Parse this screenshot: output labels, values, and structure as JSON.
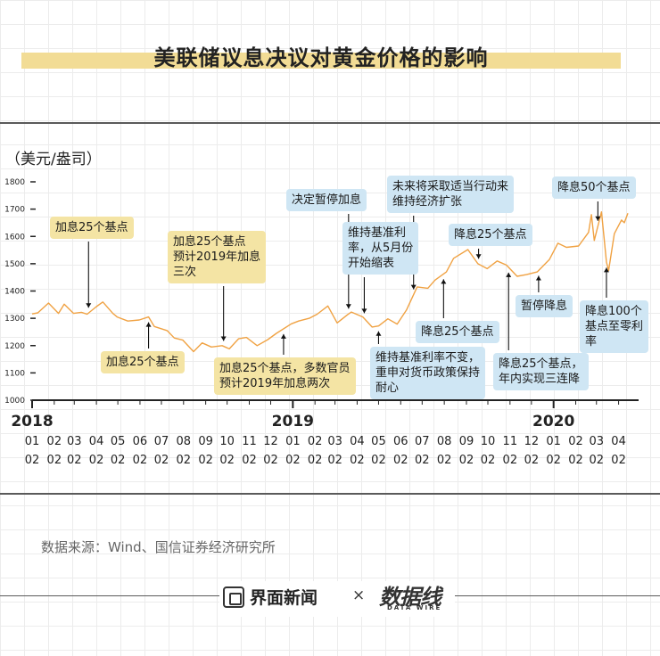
{
  "title": "美联储议息决议对黄金价格的影响",
  "unit_label": "（美元/盎司）",
  "source": "数据来源：Wind、国信证券经济研究所",
  "footer": {
    "brand": "界面新闻",
    "times": "×",
    "partner": "数据线",
    "partner_sub": "DATA WIRE"
  },
  "colors": {
    "line": "#f0a243",
    "hike_box": "#f4e4a4",
    "cut_box": "#cfe6f4",
    "title_bar": "#f2dc95",
    "axis": "#222222"
  },
  "chart_data": {
    "type": "line",
    "y_ticks": [
      1000,
      1100,
      1200,
      1300,
      1400,
      1500,
      1600,
      1700,
      1800
    ],
    "ylim": [
      1000,
      1800
    ],
    "x_range": [
      "2018-01-02",
      "2020-04-30"
    ],
    "years": [
      {
        "label": "2018",
        "date": "2018-01-02"
      },
      {
        "label": "2019",
        "date": "2019-01-02"
      },
      {
        "label": "2020",
        "date": "2020-01-02"
      }
    ],
    "month_ticks": [
      {
        "m": "01",
        "d": "02",
        "date": "2018-01-02"
      },
      {
        "m": "02",
        "d": "02",
        "date": "2018-02-02"
      },
      {
        "m": "03",
        "d": "02",
        "date": "2018-03-02"
      },
      {
        "m": "04",
        "d": "02",
        "date": "2018-04-02"
      },
      {
        "m": "05",
        "d": "02",
        "date": "2018-05-02"
      },
      {
        "m": "06",
        "d": "02",
        "date": "2018-06-02"
      },
      {
        "m": "07",
        "d": "02",
        "date": "2018-07-02"
      },
      {
        "m": "08",
        "d": "02",
        "date": "2018-08-02"
      },
      {
        "m": "09",
        "d": "02",
        "date": "2018-09-02"
      },
      {
        "m": "10",
        "d": "02",
        "date": "2018-10-02"
      },
      {
        "m": "11",
        "d": "02",
        "date": "2018-11-02"
      },
      {
        "m": "12",
        "d": "02",
        "date": "2018-12-02"
      },
      {
        "m": "01",
        "d": "02",
        "date": "2019-01-02"
      },
      {
        "m": "02",
        "d": "02",
        "date": "2019-02-02"
      },
      {
        "m": "03",
        "d": "02",
        "date": "2019-03-02"
      },
      {
        "m": "04",
        "d": "02",
        "date": "2019-04-02"
      },
      {
        "m": "05",
        "d": "02",
        "date": "2019-05-02"
      },
      {
        "m": "06",
        "d": "02",
        "date": "2019-06-02"
      },
      {
        "m": "07",
        "d": "02",
        "date": "2019-07-02"
      },
      {
        "m": "08",
        "d": "02",
        "date": "2019-08-02"
      },
      {
        "m": "09",
        "d": "02",
        "date": "2019-09-02"
      },
      {
        "m": "10",
        "d": "02",
        "date": "2019-10-02"
      },
      {
        "m": "11",
        "d": "02",
        "date": "2019-11-02"
      },
      {
        "m": "12",
        "d": "02",
        "date": "2019-12-02"
      },
      {
        "m": "01",
        "d": "02",
        "date": "2020-01-02"
      },
      {
        "m": "02",
        "d": "02",
        "date": "2020-02-02"
      },
      {
        "m": "03",
        "d": "02",
        "date": "2020-03-02"
      },
      {
        "m": "04",
        "d": "02",
        "date": "2020-04-02"
      }
    ],
    "points": [
      [
        "2018-01-02",
        1316
      ],
      [
        "2018-01-10",
        1320
      ],
      [
        "2018-01-25",
        1356
      ],
      [
        "2018-02-08",
        1318
      ],
      [
        "2018-02-16",
        1352
      ],
      [
        "2018-03-01",
        1318
      ],
      [
        "2018-03-12",
        1322
      ],
      [
        "2018-03-20",
        1315
      ],
      [
        "2018-04-02",
        1343
      ],
      [
        "2018-04-11",
        1360
      ],
      [
        "2018-04-25",
        1318
      ],
      [
        "2018-05-01",
        1305
      ],
      [
        "2018-05-16",
        1290
      ],
      [
        "2018-06-01",
        1294
      ],
      [
        "2018-06-14",
        1305
      ],
      [
        "2018-06-22",
        1270
      ],
      [
        "2018-07-10",
        1255
      ],
      [
        "2018-07-20",
        1228
      ],
      [
        "2018-08-01",
        1220
      ],
      [
        "2018-08-16",
        1178
      ],
      [
        "2018-08-28",
        1210
      ],
      [
        "2018-09-10",
        1195
      ],
      [
        "2018-09-25",
        1200
      ],
      [
        "2018-10-05",
        1188
      ],
      [
        "2018-10-18",
        1225
      ],
      [
        "2018-10-29",
        1230
      ],
      [
        "2018-11-13",
        1200
      ],
      [
        "2018-11-28",
        1222
      ],
      [
        "2018-12-10",
        1245
      ],
      [
        "2018-12-31",
        1280
      ],
      [
        "2019-01-10",
        1290
      ],
      [
        "2019-01-25",
        1300
      ],
      [
        "2019-02-05",
        1315
      ],
      [
        "2019-02-20",
        1345
      ],
      [
        "2019-03-05",
        1283
      ],
      [
        "2019-03-20",
        1314
      ],
      [
        "2019-03-25",
        1323
      ],
      [
        "2019-04-10",
        1305
      ],
      [
        "2019-04-23",
        1268
      ],
      [
        "2019-05-02",
        1272
      ],
      [
        "2019-05-15",
        1298
      ],
      [
        "2019-05-28",
        1279
      ],
      [
        "2019-06-10",
        1330
      ],
      [
        "2019-06-25",
        1415
      ],
      [
        "2019-07-10",
        1410
      ],
      [
        "2019-07-20",
        1440
      ],
      [
        "2019-08-05",
        1470
      ],
      [
        "2019-08-15",
        1520
      ],
      [
        "2019-09-04",
        1552
      ],
      [
        "2019-09-18",
        1500
      ],
      [
        "2019-10-01",
        1482
      ],
      [
        "2019-10-15",
        1510
      ],
      [
        "2019-10-28",
        1495
      ],
      [
        "2019-11-12",
        1454
      ],
      [
        "2019-11-25",
        1460
      ],
      [
        "2019-12-10",
        1470
      ],
      [
        "2019-12-27",
        1515
      ],
      [
        "2020-01-08",
        1575
      ],
      [
        "2020-01-20",
        1560
      ],
      [
        "2020-02-06",
        1565
      ],
      [
        "2020-02-20",
        1615
      ],
      [
        "2020-02-24",
        1680
      ],
      [
        "2020-02-28",
        1585
      ],
      [
        "2020-03-09",
        1690
      ],
      [
        "2020-03-16",
        1505
      ],
      [
        "2020-03-19",
        1475
      ],
      [
        "2020-03-27",
        1610
      ],
      [
        "2020-04-06",
        1660
      ],
      [
        "2020-04-10",
        1650
      ],
      [
        "2020-04-15",
        1685
      ]
    ],
    "annotations": [
      {
        "id": "a1",
        "text": "加息25个基点",
        "kind": "hike",
        "date": "2018-03-22"
      },
      {
        "id": "a2",
        "text": "加息25个基点",
        "kind": "hike",
        "date": "2018-06-14"
      },
      {
        "id": "a3",
        "text": "加息25个基点\n预计2019年加息\n三次",
        "kind": "hike",
        "date": "2018-09-27"
      },
      {
        "id": "a4",
        "text": "加息25个基点，多数官员\n预计2019年加息两次",
        "kind": "hike",
        "date": "2018-12-20"
      },
      {
        "id": "a5",
        "text": "决定暂停加息",
        "kind": "cut",
        "date": "2019-03-21"
      },
      {
        "id": "a6",
        "text": "维持基准利\n率，从5月份\n开始缩表",
        "kind": "cut",
        "date": "2019-04-12"
      },
      {
        "id": "a7",
        "text": "维持基准利率不变，\n重申对货币政策保持\n耐心",
        "kind": "cut",
        "date": "2019-05-02"
      },
      {
        "id": "a8",
        "text": "未来将采取适当行动来\n维持经济扩张",
        "kind": "cut",
        "date": "2019-06-20"
      },
      {
        "id": "a9",
        "text": "降息25个基点",
        "kind": "cut",
        "date": "2019-08-01"
      },
      {
        "id": "a10",
        "text": "降息25个基点",
        "kind": "cut",
        "date": "2019-09-19"
      },
      {
        "id": "a11",
        "text": "降息25个基点，\n年内实现三连降",
        "kind": "cut",
        "date": "2019-10-31"
      },
      {
        "id": "a12",
        "text": "暂停降息",
        "kind": "cut",
        "date": "2019-12-12"
      },
      {
        "id": "a13",
        "text": "降息50个基点",
        "kind": "cut",
        "date": "2020-03-04"
      },
      {
        "id": "a14",
        "text": "降息100个\n基点至零利\n率",
        "kind": "cut",
        "date": "2020-03-16"
      }
    ]
  }
}
